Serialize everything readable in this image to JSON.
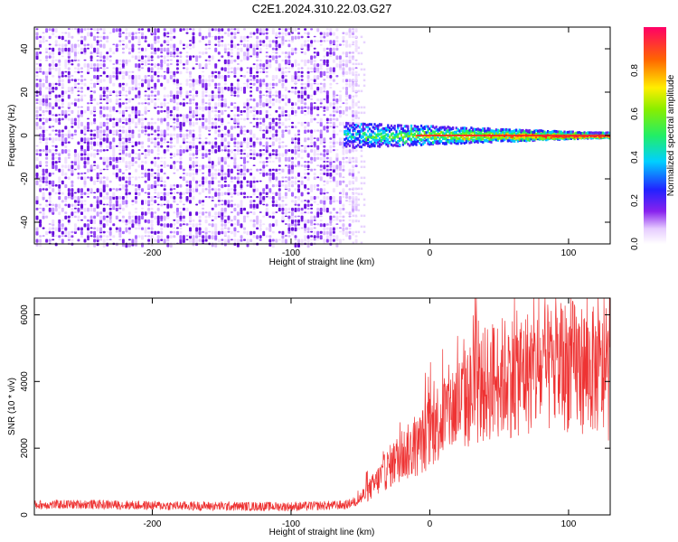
{
  "title": "C2E1.2024.310.22.03.G27",
  "chart_data": [
    {
      "type": "heatmap",
      "xlabel": "Height of straight line (km)",
      "ylabel": "Frequency (Hz)",
      "xlim": [
        -285,
        130
      ],
      "ylim": [
        -50,
        50
      ],
      "x_ticks": [
        -200,
        -100,
        0,
        100
      ],
      "x_tick_labels": [
        "-200",
        "-100",
        "0",
        "100"
      ],
      "y_ticks": [
        -40,
        -20,
        0,
        20,
        40
      ],
      "y_tick_labels": [
        "-40",
        "-20",
        "0",
        "20",
        "40"
      ],
      "colorbar": {
        "label": "Normalized spectral amplitude",
        "range": [
          0,
          1
        ],
        "ticks": [
          0.0,
          0.2,
          0.4,
          0.6,
          0.8
        ],
        "tick_labels": [
          "0.0",
          "0.2",
          "0.4",
          "0.6",
          "0.8"
        ]
      },
      "description_regions": [
        {
          "x_range": [
            -285,
            -50
          ],
          "freq_range": [
            -50,
            50
          ],
          "amplitude": "low (noise)"
        },
        {
          "x_range": [
            -60,
            130
          ],
          "freq_range": [
            -5,
            5
          ],
          "amplitude": "high (signal line near 0 Hz)"
        }
      ]
    },
    {
      "type": "line",
      "xlabel": "Height of straight line (km)",
      "ylabel": "SNR (10 * v/v)",
      "xlim": [
        -285,
        130
      ],
      "ylim": [
        0,
        6500
      ],
      "x_ticks": [
        -200,
        -100,
        0,
        100
      ],
      "x_tick_labels": [
        "-200",
        "-100",
        "0",
        "100"
      ],
      "y_ticks": [
        0,
        2000,
        4000,
        6000
      ],
      "y_tick_labels": [
        "0",
        "2000",
        "4000",
        "6000"
      ],
      "color": "#ee3333",
      "envelope": {
        "x": [
          -285,
          -250,
          -200,
          -150,
          -100,
          -60,
          -50,
          -40,
          -30,
          -20,
          -10,
          0,
          10,
          20,
          30,
          40,
          50,
          60,
          70,
          80,
          90,
          100,
          110,
          120,
          130
        ],
        "y": [
          300,
          320,
          280,
          260,
          250,
          300,
          500,
          900,
          1400,
          1800,
          2000,
          2500,
          3000,
          3300,
          3600,
          3900,
          4100,
          4200,
          4300,
          4300,
          4400,
          4500,
          4400,
          4300,
          4000
        ]
      }
    }
  ]
}
